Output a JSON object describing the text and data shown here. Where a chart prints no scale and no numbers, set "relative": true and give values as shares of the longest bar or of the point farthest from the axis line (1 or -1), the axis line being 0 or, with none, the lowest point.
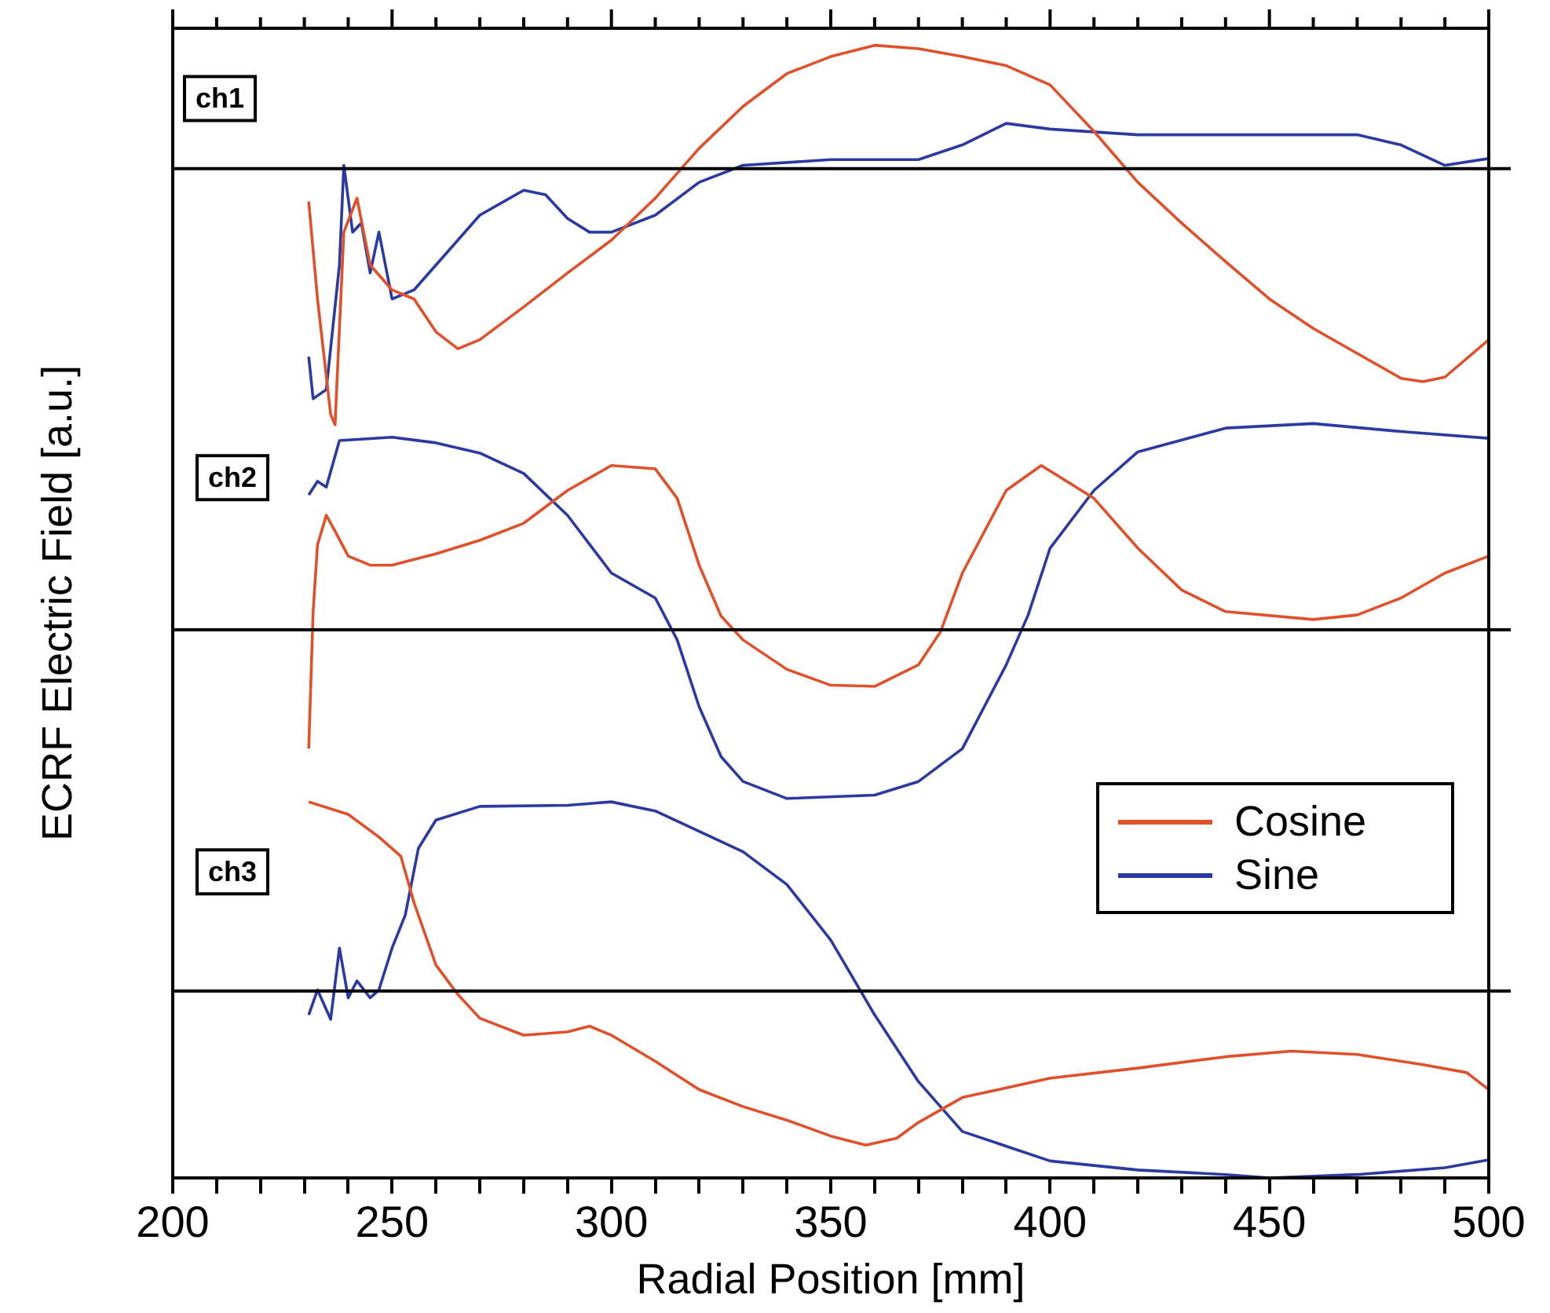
{
  "chart_data": {
    "type": "line",
    "xlabel": "Radial Position [mm]",
    "ylabel": "ECRF Electric Field [a.u.]",
    "relative": true,
    "xlim": [
      200,
      500
    ],
    "xticks": [
      200,
      {
        "value": 210,
        "label": null
      },
      {
        "value": 220,
        "label": null
      },
      {
        "value": 230,
        "label": null
      },
      {
        "value": 240,
        "label": null
      },
      250,
      {
        "value": 260,
        "label": null
      },
      {
        "value": 270,
        "label": null
      },
      {
        "value": 280,
        "label": null
      },
      {
        "value": 290,
        "label": null
      },
      300,
      {
        "value": 310,
        "label": null
      },
      {
        "value": 320,
        "label": null
      },
      {
        "value": 330,
        "label": null
      },
      {
        "value": 340,
        "label": null
      },
      350,
      {
        "value": 360,
        "label": null
      },
      {
        "value": 370,
        "label": null
      },
      {
        "value": 380,
        "label": null
      },
      {
        "value": 390,
        "label": null
      },
      400,
      {
        "value": 410,
        "label": null
      },
      {
        "value": 420,
        "label": null
      },
      {
        "value": 430,
        "label": null
      },
      {
        "value": 440,
        "label": null
      },
      450,
      {
        "value": 460,
        "label": null
      },
      {
        "value": 470,
        "label": null
      },
      {
        "value": 480,
        "label": null
      },
      {
        "value": 490,
        "label": null
      },
      500
    ],
    "legend": "right",
    "grid": false,
    "marker": "none",
    "line_style": "solid",
    "series": [
      {
        "name": "Cosine",
        "color": "#e0502a",
        "x": [
          231,
          233,
          236,
          237,
          239,
          242,
          245,
          250,
          255,
          260,
          265,
          270,
          280,
          290,
          300,
          310,
          320,
          330,
          340,
          350,
          360,
          370,
          380,
          390,
          400,
          410,
          420,
          430,
          440,
          450,
          460,
          470,
          480,
          485,
          490,
          500
        ],
        "values": [
          0.862,
          0.776,
          0.674,
          0.665,
          0.835,
          0.865,
          0.806,
          0.784,
          0.776,
          0.747,
          0.732,
          0.74,
          0.769,
          0.799,
          0.828,
          0.865,
          0.909,
          0.946,
          0.975,
          0.99,
          1,
          0.997,
          0.99,
          0.982,
          0.965,
          0.924,
          0.879,
          0.843,
          0.809,
          0.776,
          0.75,
          0.728,
          0.706,
          0.703,
          0.707,
          0.74
        ]
      },
      {
        "name": "Sine",
        "color": "#2a3aa0",
        "x": [
          231,
          232,
          235,
          238,
          239,
          241,
          243,
          245,
          247,
          250,
          255,
          260,
          265,
          270,
          280,
          285,
          290,
          295,
          300,
          310,
          320,
          330,
          350,
          370,
          380,
          390,
          400,
          420,
          450,
          470,
          480,
          490,
          500
        ],
        "values": [
          0.725,
          0.688,
          0.696,
          0.806,
          0.894,
          0.835,
          0.843,
          0.799,
          0.835,
          0.776,
          0.784,
          0.806,
          0.828,
          0.85,
          0.872,
          0.868,
          0.847,
          0.835,
          0.835,
          0.85,
          0.879,
          0.894,
          0.899,
          0.899,
          0.912,
          0.931,
          0.926,
          0.921,
          0.921,
          0.921,
          0.912,
          0.894,
          0.9
        ]
      },
      {
        "color": "#e0502a",
        "x": [
          231,
          232,
          233,
          235,
          237,
          240,
          245,
          250,
          260,
          270,
          280,
          290,
          300,
          310,
          315,
          320,
          325,
          330,
          340,
          350,
          360,
          370,
          375,
          380,
          390,
          398,
          410,
          420,
          430,
          440,
          460,
          470,
          480,
          490,
          500
        ],
        "values": [
          0.379,
          0.5,
          0.559,
          0.585,
          0.571,
          0.549,
          0.541,
          0.541,
          0.551,
          0.563,
          0.578,
          0.607,
          0.629,
          0.626,
          0.6,
          0.541,
          0.496,
          0.475,
          0.449,
          0.435,
          0.434,
          0.453,
          0.482,
          0.534,
          0.607,
          0.629,
          0.6,
          0.556,
          0.519,
          0.5,
          0.493,
          0.497,
          0.512,
          0.534,
          0.549
        ]
      },
      {
        "color": "#2a3aa0",
        "x": [
          231,
          233,
          235,
          238,
          250,
          260,
          270,
          280,
          290,
          300,
          310,
          315,
          320,
          325,
          330,
          340,
          360,
          370,
          380,
          390,
          395,
          400,
          410,
          420,
          440,
          460,
          480,
          500
        ],
        "values": [
          0.603,
          0.615,
          0.61,
          0.651,
          0.654,
          0.649,
          0.64,
          0.622,
          0.585,
          0.534,
          0.512,
          0.475,
          0.416,
          0.372,
          0.35,
          0.335,
          0.338,
          0.35,
          0.379,
          0.453,
          0.497,
          0.556,
          0.607,
          0.641,
          0.662,
          0.666,
          0.659,
          0.653
        ]
      },
      {
        "color": "#e0502a",
        "x": [
          231,
          240,
          247,
          252,
          255,
          260,
          265,
          270,
          280,
          290,
          295,
          300,
          310,
          320,
          330,
          340,
          350,
          358,
          365,
          370,
          380,
          400,
          420,
          440,
          455,
          470,
          485,
          495,
          500
        ],
        "values": [
          0.332,
          0.321,
          0.301,
          0.284,
          0.243,
          0.188,
          0.162,
          0.141,
          0.126,
          0.129,
          0.134,
          0.126,
          0.103,
          0.078,
          0.063,
          0.051,
          0.037,
          0.029,
          0.035,
          0.049,
          0.071,
          0.088,
          0.097,
          0.107,
          0.112,
          0.109,
          0.1,
          0.093,
          0.078
        ]
      },
      {
        "color": "#2a3aa0",
        "x": [
          231,
          233,
          236,
          238,
          240,
          242,
          245,
          247,
          250,
          253,
          256,
          260,
          270,
          290,
          300,
          310,
          320,
          330,
          340,
          350,
          360,
          370,
          380,
          400,
          420,
          440,
          450,
          470,
          490,
          500
        ],
        "values": [
          0.144,
          0.166,
          0.14,
          0.203,
          0.159,
          0.174,
          0.159,
          0.166,
          0.203,
          0.232,
          0.291,
          0.316,
          0.328,
          0.329,
          0.332,
          0.324,
          0.306,
          0.288,
          0.259,
          0.21,
          0.144,
          0.085,
          0.041,
          0.015,
          0.007,
          0.003,
          0,
          0.003,
          0.009,
          0.016
        ]
      }
    ],
    "ref_lines": [
      {
        "axis": "y",
        "value": 0.891,
        "color": "#000000"
      },
      {
        "axis": "y",
        "value": 0.484,
        "color": "#000000"
      },
      {
        "axis": "y",
        "value": 0.165,
        "color": "#000000"
      }
    ],
    "annotations": [
      "ch1",
      "ch2",
      "ch3"
    ]
  }
}
